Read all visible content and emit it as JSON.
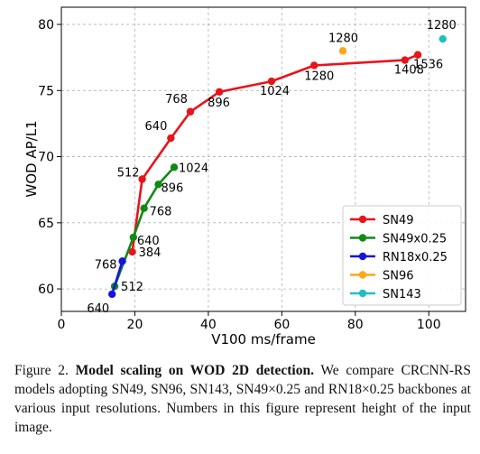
{
  "chart_data": {
    "type": "line",
    "xlabel": "V100 ms/frame",
    "ylabel": "WOD AP/L1",
    "xlim": [
      0,
      110
    ],
    "ylim": [
      58.3,
      81.3
    ],
    "xticks": [
      "0",
      "20",
      "40",
      "60",
      "80",
      "100"
    ],
    "yticks": [
      "60",
      "65",
      "70",
      "75",
      "80"
    ],
    "grid": true,
    "legend_position": "lower-right",
    "series": [
      {
        "name": "SN49",
        "color": "#e8141c",
        "points": [
          {
            "x": 19.3,
            "y": 62.8,
            "label": "384"
          },
          {
            "x": 22.0,
            "y": 68.3,
            "label": "512"
          },
          {
            "x": 29.8,
            "y": 71.4,
            "label": "640"
          },
          {
            "x": 35.1,
            "y": 73.4,
            "label": "768"
          },
          {
            "x": 43.0,
            "y": 74.9,
            "label": "896"
          },
          {
            "x": 57.2,
            "y": 75.7,
            "label": "1024"
          },
          {
            "x": 68.8,
            "y": 76.9,
            "label": "1280"
          },
          {
            "x": 93.5,
            "y": 77.3,
            "label": "1408"
          },
          {
            "x": 97.0,
            "y": 77.7,
            "label": "1536"
          }
        ]
      },
      {
        "name": "SN49x0.25",
        "color": "#118a14",
        "points": [
          {
            "x": 14.5,
            "y": 60.2,
            "label": "512"
          },
          {
            "x": 19.6,
            "y": 63.9,
            "label": "640"
          },
          {
            "x": 22.5,
            "y": 66.1,
            "label": "768"
          },
          {
            "x": 26.4,
            "y": 67.9,
            "label": "896"
          },
          {
            "x": 30.7,
            "y": 69.2,
            "label": "1024"
          }
        ]
      },
      {
        "name": "RN18x0.25",
        "color": "#1414e0",
        "points": [
          {
            "x": 13.8,
            "y": 59.6,
            "label": "640"
          },
          {
            "x": 16.6,
            "y": 62.1,
            "label": "768"
          }
        ]
      },
      {
        "name": "SN96",
        "color": "#ffa51a",
        "points": [
          {
            "x": 76.6,
            "y": 78.0,
            "label": "1280"
          }
        ]
      },
      {
        "name": "SN143",
        "color": "#20bfbf",
        "points": [
          {
            "x": 103.8,
            "y": 78.9,
            "label": "1280"
          }
        ]
      }
    ]
  },
  "caption": {
    "figure_label": "Figure 2.",
    "bold_title": "Model scaling on WOD 2D detection.",
    "text": "We compare CRCNN-RS models adopting SN49, SN96, SN143, SN49×0.25 and RN18×0.25 backbones at various input resolutions. Numbers in this figure represent height of the input image."
  }
}
